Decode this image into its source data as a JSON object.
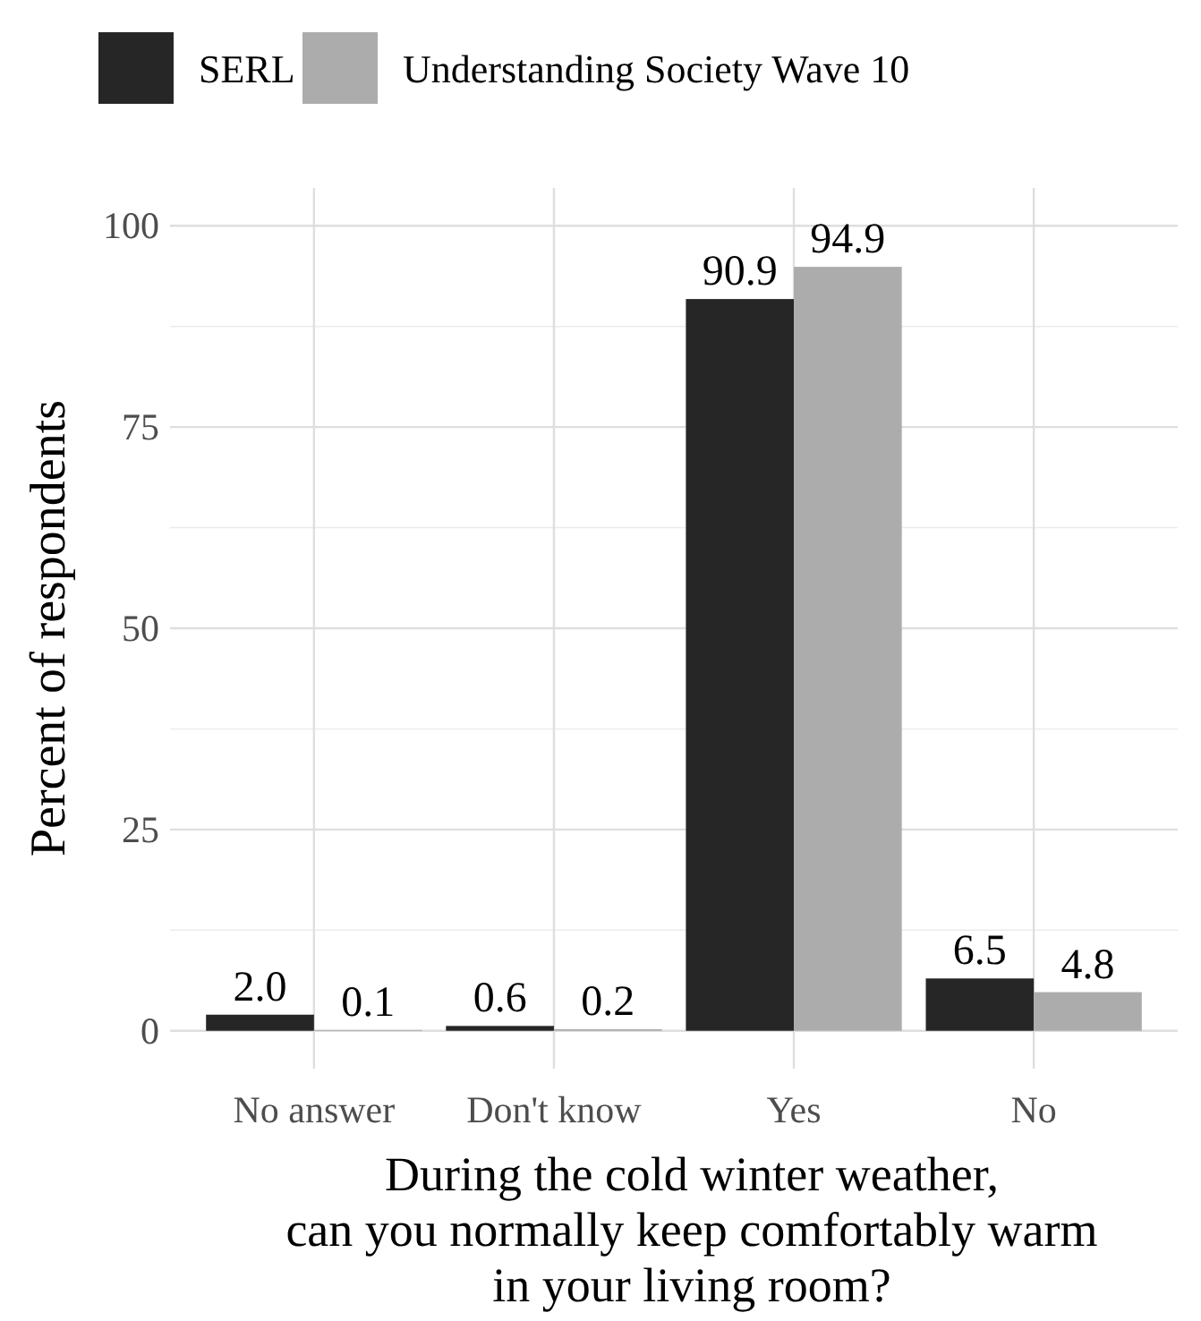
{
  "chart_data": {
    "type": "bar",
    "xlabel": "During the cold winter weather,\ncan you normally keep comfortably warm\nin your living room?",
    "ylabel": "Percent of respondents",
    "categories": [
      "No answer",
      "Don't know",
      "Yes",
      "No"
    ],
    "series": [
      {
        "name": "SERL",
        "color": "#262626",
        "values": [
          2.0,
          0.6,
          90.9,
          6.5
        ],
        "value_labels": [
          "2.0",
          "0.6",
          "90.9",
          "6.5"
        ]
      },
      {
        "name": "Understanding Society Wave 10",
        "color": "#acacac",
        "values": [
          0.1,
          0.2,
          94.9,
          4.8
        ],
        "value_labels": [
          "0.1",
          "0.2",
          "94.9",
          "4.8"
        ]
      }
    ],
    "ylim": [
      -4.7,
      104.7
    ],
    "yticks": [
      0,
      25,
      50,
      75,
      100
    ],
    "grid": true,
    "legend": "top"
  }
}
